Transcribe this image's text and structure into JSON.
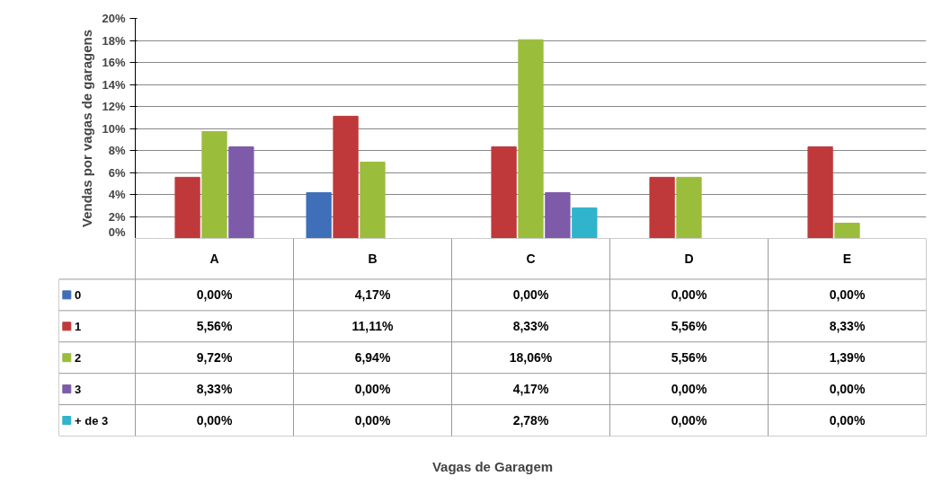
{
  "chart_data": {
    "type": "bar",
    "annotations": [
      "Vagas de Garagem"
    ],
    "ylabel": "Vendas por vagas de garagens",
    "categories": [
      "A",
      "B",
      "C",
      "D",
      "E"
    ],
    "series": [
      {
        "name": "0",
        "color": "#3f6fb8",
        "values": [
          0,
          4.17,
          0,
          0,
          0
        ],
        "value_labels": [
          "0,00%",
          "4,17%",
          "0,00%",
          "0,00%",
          "0,00%"
        ]
      },
      {
        "name": "1",
        "color": "#c0393a",
        "values": [
          5.56,
          11.11,
          8.33,
          5.56,
          8.33
        ],
        "value_labels": [
          "5,56%",
          "11,11%",
          "8,33%",
          "5,56%",
          "8,33%"
        ]
      },
      {
        "name": "2",
        "color": "#9bbd3c",
        "values": [
          9.72,
          6.94,
          18.06,
          5.56,
          1.39
        ],
        "value_labels": [
          "9,72%",
          "6,94%",
          "18,06%",
          "5,56%",
          "1,39%"
        ]
      },
      {
        "name": "3",
        "color": "#7d5ba8",
        "values": [
          8.33,
          0,
          4.17,
          0,
          0
        ],
        "value_labels": [
          "8,33%",
          "0,00%",
          "4,17%",
          "0,00%",
          "0,00%"
        ]
      },
      {
        "name": "+ de 3",
        "color": "#30b4cc",
        "values": [
          0,
          0,
          2.78,
          0,
          0
        ],
        "value_labels": [
          "0,00%",
          "0,00%",
          "2,78%",
          "0,00%",
          "0,00%"
        ]
      }
    ],
    "ylim": [
      0,
      20
    ],
    "yticks": [
      {
        "value": 0,
        "label": "0%"
      },
      {
        "value": 2,
        "label": "2%"
      },
      {
        "value": 4,
        "label": "4%"
      },
      {
        "value": 6,
        "label": "6%"
      },
      {
        "value": 8,
        "label": "8%"
      },
      {
        "value": 10,
        "label": "10%"
      },
      {
        "value": 12,
        "label": "12%"
      },
      {
        "value": 14,
        "label": "14%"
      },
      {
        "value": 16,
        "label": "16%"
      },
      {
        "value": 18,
        "label": "18%"
      },
      {
        "value": 20,
        "label": "20%"
      }
    ],
    "grid": "y",
    "legend": "bottom"
  }
}
